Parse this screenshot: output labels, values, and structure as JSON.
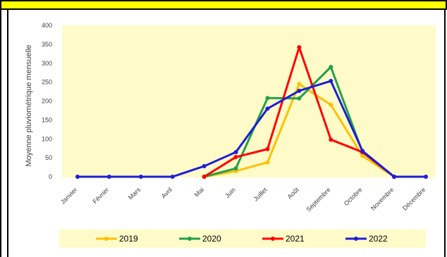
{
  "chart_data": {
    "type": "line",
    "ylabel": "Moyenne pluviométrique mensuelle",
    "ylim": [
      0,
      400
    ],
    "yticks": [
      "0",
      "50",
      "100",
      "150",
      "200",
      "250",
      "300",
      "350",
      "400"
    ],
    "categories": [
      "Janvier",
      "Février",
      "Mars",
      "Avril",
      "Mai",
      "Juin",
      "Juillet",
      "Août",
      "Septembre",
      "Octobre",
      "Novembre",
      "Décembre"
    ],
    "grid": false,
    "legend": "bottom",
    "series": [
      {
        "name": "2019",
        "color": "#ffc000",
        "values": [
          null,
          null,
          null,
          null,
          0,
          15,
          38,
          245,
          190,
          55,
          0,
          null
        ]
      },
      {
        "name": "2020",
        "color": "#22a04a",
        "values": [
          null,
          null,
          null,
          null,
          0,
          22,
          208,
          207,
          290,
          65,
          0,
          null
        ]
      },
      {
        "name": "2021",
        "color": "#ff0000",
        "values": [
          null,
          null,
          null,
          null,
          0,
          52,
          73,
          342,
          98,
          65,
          0,
          null
        ]
      },
      {
        "name": "2022",
        "color": "#1f1fd6",
        "values": [
          0,
          0,
          0,
          0,
          28,
          65,
          180,
          227,
          253,
          68,
          0,
          0
        ]
      }
    ]
  }
}
